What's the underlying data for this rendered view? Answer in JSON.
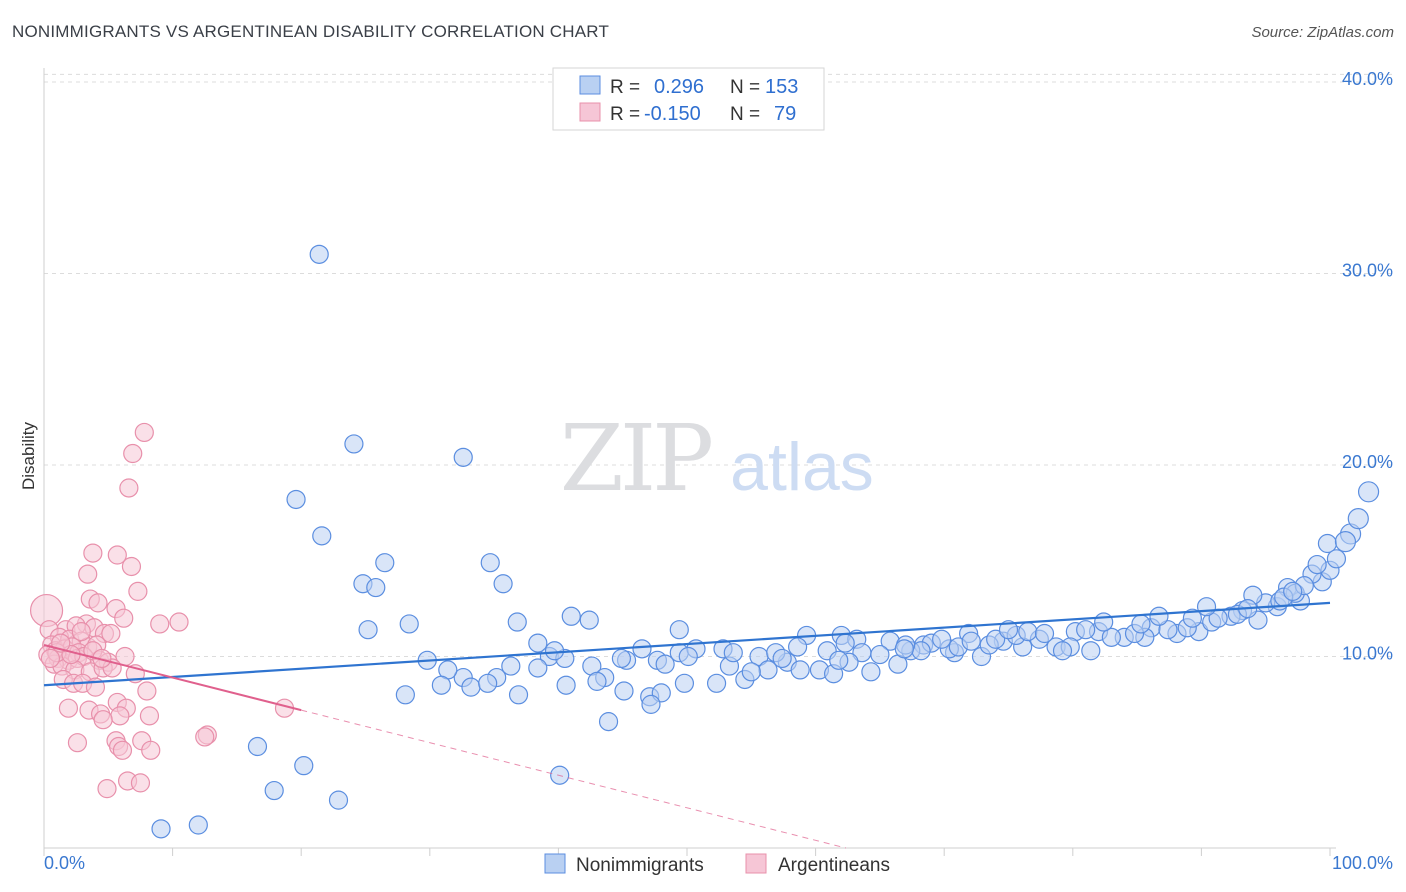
{
  "title": "NONIMMIGRANTS VS ARGENTINEAN DISABILITY CORRELATION CHART",
  "source": "Source: ZipAtlas.com",
  "watermark": {
    "zip": "ZIP",
    "atlas": "atlas"
  },
  "colors": {
    "blue": "#5b8ee0",
    "blue_fill": "#b9d0f2",
    "blue_line": "#2f74d0",
    "pink": "#e890ab",
    "pink_fill": "#f6c6d6",
    "pink_line": "#e0608d",
    "axis_text": "#3a78d0"
  },
  "legend": [
    {
      "r_label": "R =",
      "r_value": "0.296",
      "n_label": "N =",
      "n_value": "153"
    },
    {
      "r_label": "R =",
      "r_value": "-0.150",
      "n_label": "N =",
      "n_value": "79"
    }
  ],
  "chart_data": {
    "type": "scatter",
    "title": "NONIMMIGRANTS VS ARGENTINEAN DISABILITY CORRELATION CHART",
    "xlabel": "",
    "ylabel": "Disability",
    "xlim": [
      0,
      100
    ],
    "ylim": [
      0,
      41
    ],
    "x_tick_labels": [
      "0.0%",
      "100.0%"
    ],
    "y_ticks": [
      10,
      20,
      30,
      40
    ],
    "y_tick_labels": [
      "10.0%",
      "20.0%",
      "30.0%",
      "40.0%"
    ],
    "grid": true,
    "legend_position": "top-center",
    "series": [
      {
        "name": "Nonimmigrants",
        "r": 0.296,
        "n": 153,
        "trend": {
          "x": [
            0,
            100
          ],
          "y": [
            8.5,
            12.8
          ]
        },
        "points": [
          [
            21.4,
            31.0
          ],
          [
            24.1,
            21.1
          ],
          [
            32.6,
            20.4
          ],
          [
            19.6,
            18.2
          ],
          [
            21.6,
            16.3
          ],
          [
            26.5,
            14.9
          ],
          [
            34.7,
            14.9
          ],
          [
            24.8,
            13.8
          ],
          [
            25.8,
            13.6
          ],
          [
            35.7,
            13.8
          ],
          [
            28.4,
            11.7
          ],
          [
            25.2,
            11.4
          ],
          [
            36.8,
            11.8
          ],
          [
            41.0,
            12.1
          ],
          [
            42.4,
            11.9
          ],
          [
            49.4,
            11.4
          ],
          [
            59.3,
            11.1
          ],
          [
            62.0,
            11.1
          ],
          [
            38.4,
            10.7
          ],
          [
            39.3,
            10.0
          ],
          [
            46.5,
            10.4
          ],
          [
            49.4,
            10.2
          ],
          [
            38.4,
            9.4
          ],
          [
            42.6,
            9.5
          ],
          [
            47.7,
            9.8
          ],
          [
            52.8,
            10.4
          ],
          [
            58.6,
            10.5
          ],
          [
            63.2,
            10.9
          ],
          [
            65.8,
            10.8
          ],
          [
            68.4,
            10.6
          ],
          [
            70.8,
            10.2
          ],
          [
            74.6,
            10.8
          ],
          [
            76.1,
            10.5
          ],
          [
            29.8,
            9.8
          ],
          [
            32.6,
            8.9
          ],
          [
            35.2,
            8.9
          ],
          [
            31.4,
            9.3
          ],
          [
            36.3,
            9.5
          ],
          [
            40.5,
            9.9
          ],
          [
            43.6,
            8.9
          ],
          [
            45.3,
            9.8
          ],
          [
            48.3,
            9.6
          ],
          [
            50.7,
            10.4
          ],
          [
            55.6,
            10.0
          ],
          [
            57.8,
            9.7
          ],
          [
            63.6,
            10.2
          ],
          [
            67.4,
            10.3
          ],
          [
            69.0,
            10.7
          ],
          [
            71.9,
            11.2
          ],
          [
            75.6,
            11.1
          ],
          [
            77.4,
            10.9
          ],
          [
            80.2,
            11.3
          ],
          [
            82.0,
            11.3
          ],
          [
            84.0,
            11.0
          ],
          [
            86.1,
            11.5
          ],
          [
            88.1,
            11.2
          ],
          [
            93.2,
            12.4
          ],
          [
            94.4,
            11.9
          ],
          [
            95.9,
            12.6
          ],
          [
            97.7,
            12.9
          ],
          [
            99.4,
            13.9
          ],
          [
            100.0,
            14.5
          ],
          [
            33.2,
            8.4
          ],
          [
            36.9,
            8.0
          ],
          [
            28.1,
            8.0
          ],
          [
            30.9,
            8.5
          ],
          [
            34.5,
            8.6
          ],
          [
            40.6,
            8.5
          ],
          [
            43.0,
            8.7
          ],
          [
            47.1,
            7.9
          ],
          [
            48.0,
            8.1
          ],
          [
            52.3,
            8.6
          ],
          [
            54.5,
            8.8
          ],
          [
            56.3,
            9.3
          ],
          [
            60.3,
            9.3
          ],
          [
            61.4,
            9.1
          ],
          [
            64.3,
            9.2
          ],
          [
            66.4,
            9.6
          ],
          [
            68.2,
            10.3
          ],
          [
            72.9,
            10.0
          ],
          [
            78.7,
            10.5
          ],
          [
            81.4,
            10.3
          ],
          [
            85.6,
            11.0
          ],
          [
            89.8,
            11.3
          ],
          [
            90.8,
            11.8
          ],
          [
            92.3,
            12.1
          ],
          [
            96.7,
            13.6
          ],
          [
            98.6,
            14.3
          ],
          [
            99.8,
            15.9
          ],
          [
            101.6,
            16.4
          ],
          [
            102.2,
            17.2
          ],
          [
            103.0,
            18.6
          ],
          [
            43.9,
            6.6
          ],
          [
            47.2,
            7.5
          ],
          [
            40.1,
            3.8
          ],
          [
            22.9,
            2.5
          ],
          [
            20.2,
            4.3
          ],
          [
            17.9,
            3.0
          ],
          [
            16.6,
            5.3
          ],
          [
            12.0,
            1.2
          ],
          [
            9.1,
            1.0
          ],
          [
            53.3,
            9.5
          ],
          [
            58.8,
            9.3
          ],
          [
            62.6,
            9.7
          ],
          [
            70.4,
            10.4
          ],
          [
            73.5,
            10.6
          ],
          [
            79.8,
            10.5
          ],
          [
            83.0,
            11.0
          ],
          [
            87.4,
            11.4
          ],
          [
            91.3,
            12.0
          ],
          [
            95.0,
            12.8
          ],
          [
            97.3,
            13.3
          ],
          [
            100.5,
            15.1
          ],
          [
            101.2,
            16.0
          ],
          [
            55.0,
            9.2
          ],
          [
            60.9,
            10.3
          ],
          [
            65.0,
            10.1
          ],
          [
            71.1,
            10.5
          ],
          [
            74.0,
            10.9
          ],
          [
            79.2,
            10.3
          ],
          [
            84.8,
            11.2
          ],
          [
            88.9,
            11.5
          ],
          [
            92.8,
            12.2
          ],
          [
            96.1,
            12.9
          ],
          [
            98.0,
            13.7
          ],
          [
            99.0,
            14.8
          ],
          [
            44.9,
            9.9
          ],
          [
            50.1,
            10.0
          ],
          [
            56.9,
            10.2
          ],
          [
            61.8,
            9.8
          ],
          [
            67.0,
            10.6
          ],
          [
            69.8,
            10.9
          ],
          [
            76.5,
            11.3
          ],
          [
            81.0,
            11.4
          ],
          [
            86.7,
            12.1
          ],
          [
            90.4,
            12.6
          ],
          [
            94.0,
            13.2
          ],
          [
            96.4,
            13.1
          ],
          [
            77.8,
            11.2
          ],
          [
            82.4,
            11.8
          ],
          [
            85.3,
            11.7
          ],
          [
            89.3,
            12.0
          ],
          [
            93.6,
            12.5
          ],
          [
            97.1,
            13.4
          ],
          [
            39.7,
            10.3
          ],
          [
            45.1,
            8.2
          ],
          [
            49.8,
            8.6
          ],
          [
            53.6,
            10.2
          ],
          [
            57.4,
            9.9
          ],
          [
            62.3,
            10.7
          ],
          [
            66.9,
            10.4
          ],
          [
            72.1,
            10.8
          ],
          [
            75.0,
            11.4
          ]
        ]
      },
      {
        "name": "Argentineans",
        "r": -0.15,
        "n": 79,
        "trend": {
          "x": [
            0,
            20
          ],
          "y": [
            10.6,
            7.2
          ]
        },
        "points": [
          [
            0.2,
            12.4
          ],
          [
            7.8,
            21.7
          ],
          [
            6.9,
            20.6
          ],
          [
            6.6,
            18.8
          ],
          [
            3.8,
            15.4
          ],
          [
            5.7,
            15.3
          ],
          [
            6.8,
            14.7
          ],
          [
            3.4,
            14.3
          ],
          [
            7.3,
            13.4
          ],
          [
            3.6,
            13.0
          ],
          [
            4.2,
            12.8
          ],
          [
            5.6,
            12.5
          ],
          [
            6.2,
            12.0
          ],
          [
            9.0,
            11.7
          ],
          [
            10.5,
            11.8
          ],
          [
            3.3,
            11.7
          ],
          [
            1.7,
            11.4
          ],
          [
            2.5,
            11.6
          ],
          [
            3.9,
            11.5
          ],
          [
            4.7,
            11.2
          ],
          [
            5.2,
            11.2
          ],
          [
            0.4,
            11.4
          ],
          [
            1.2,
            11.0
          ],
          [
            2.0,
            10.9
          ],
          [
            2.9,
            10.8
          ],
          [
            3.4,
            10.5
          ],
          [
            4.1,
            10.6
          ],
          [
            0.6,
            10.6
          ],
          [
            0.9,
            10.3
          ],
          [
            1.6,
            10.4
          ],
          [
            2.2,
            10.5
          ],
          [
            2.7,
            10.2
          ],
          [
            0.3,
            10.1
          ],
          [
            1.1,
            9.9
          ],
          [
            1.9,
            9.8
          ],
          [
            2.6,
            9.9
          ],
          [
            3.1,
            10.0
          ],
          [
            4.3,
            9.8
          ],
          [
            5.0,
            9.7
          ],
          [
            6.3,
            10.0
          ],
          [
            0.8,
            9.6
          ],
          [
            1.4,
            9.5
          ],
          [
            2.4,
            9.3
          ],
          [
            3.6,
            9.2
          ],
          [
            4.6,
            9.4
          ],
          [
            5.3,
            9.4
          ],
          [
            7.1,
            9.1
          ],
          [
            1.5,
            8.8
          ],
          [
            2.3,
            8.6
          ],
          [
            3.0,
            8.6
          ],
          [
            4.0,
            8.4
          ],
          [
            8.0,
            8.2
          ],
          [
            5.7,
            7.6
          ],
          [
            6.4,
            7.3
          ],
          [
            1.9,
            7.3
          ],
          [
            3.5,
            7.2
          ],
          [
            4.4,
            7.0
          ],
          [
            5.9,
            6.9
          ],
          [
            8.2,
            6.9
          ],
          [
            4.6,
            6.7
          ],
          [
            18.7,
            7.3
          ],
          [
            12.7,
            5.9
          ],
          [
            12.5,
            5.8
          ],
          [
            7.6,
            5.6
          ],
          [
            5.6,
            5.6
          ],
          [
            2.6,
            5.5
          ],
          [
            5.8,
            5.3
          ],
          [
            6.1,
            5.1
          ],
          [
            8.3,
            5.1
          ],
          [
            6.5,
            3.5
          ],
          [
            7.5,
            3.4
          ],
          [
            4.9,
            3.1
          ],
          [
            1.0,
            10.2
          ],
          [
            2.1,
            10.1
          ],
          [
            1.3,
            10.7
          ],
          [
            2.9,
            11.3
          ],
          [
            0.5,
            9.9
          ],
          [
            3.8,
            10.3
          ],
          [
            4.5,
            9.9
          ]
        ]
      }
    ]
  }
}
